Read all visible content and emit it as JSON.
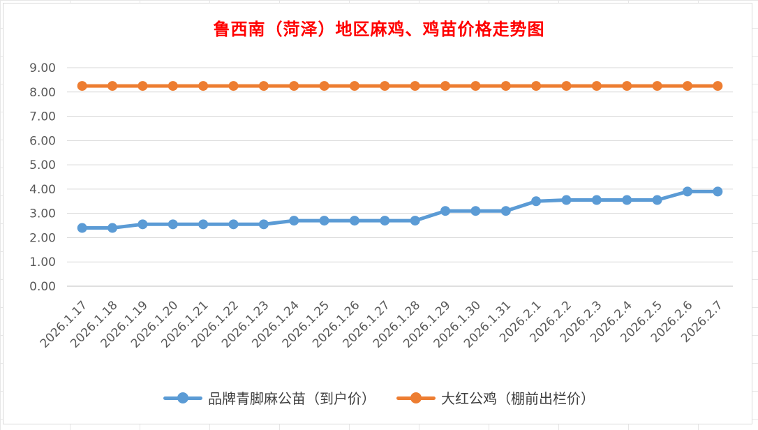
{
  "chart_data": {
    "type": "line",
    "title": "鲁西南（菏泽）地区麻鸡、鸡苗价格走势图",
    "categories": [
      "2026.1.17",
      "2026.1.18",
      "2026.1.19",
      "2026.1.20",
      "2026.1.21",
      "2026.1.22",
      "2026.1.23",
      "2026.1.24",
      "2026.1.25",
      "2026.1.26",
      "2026.1.27",
      "2026.1.28",
      "2026.1.29",
      "2026.1.30",
      "2026.1.31",
      "2026.2.1",
      "2026.2.2",
      "2026.2.3",
      "2026.2.4",
      "2026.2.5",
      "2026.2.6",
      "2026.2.7"
    ],
    "series": [
      {
        "name": "品牌青脚麻公苗（到户价）",
        "color": "#5b9bd5",
        "values": [
          2.4,
          2.4,
          2.55,
          2.55,
          2.55,
          2.55,
          2.55,
          2.7,
          2.7,
          2.7,
          2.7,
          2.7,
          3.1,
          3.1,
          3.1,
          3.5,
          3.55,
          3.55,
          3.55,
          3.55,
          3.9,
          3.9
        ]
      },
      {
        "name": "大红公鸡（棚前出栏价）",
        "color": "#ed7d31",
        "values": [
          8.25,
          8.25,
          8.25,
          8.25,
          8.25,
          8.25,
          8.25,
          8.25,
          8.25,
          8.25,
          8.25,
          8.25,
          8.25,
          8.25,
          8.25,
          8.25,
          8.25,
          8.25,
          8.25,
          8.25,
          8.25,
          8.25
        ]
      }
    ],
    "yticks": [
      "0.00",
      "1.00",
      "2.00",
      "3.00",
      "4.00",
      "5.00",
      "6.00",
      "7.00",
      "8.00",
      "9.00"
    ],
    "ylim": [
      0,
      9
    ],
    "xlabel": "",
    "ylabel": "",
    "grid": true,
    "legend_position": "bottom"
  }
}
